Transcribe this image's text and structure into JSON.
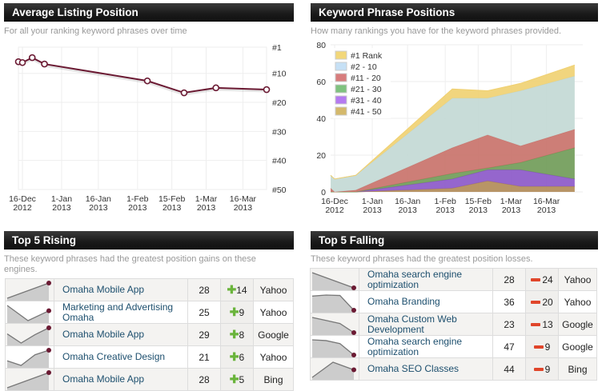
{
  "avg_position": {
    "title": "Average Listing Position",
    "subtitle": "For all your ranking keyword phrases over time",
    "chart_data": {
      "type": "line",
      "x": [
        "2012-12-14",
        "2012-12-16",
        "2012-12-20",
        "2012-12-25",
        "2013-02-05",
        "2013-02-20",
        "2013-03-05",
        "2013-03-28"
      ],
      "y": [
        6,
        6.3,
        4.6,
        6.8,
        12.6,
        16.7,
        15,
        15.6
      ],
      "y_ticks": [
        "#1",
        "#10",
        "#20",
        "#30",
        "#40",
        "#50"
      ],
      "y_tick_values": [
        1,
        10,
        20,
        30,
        40,
        50
      ],
      "ylim": [
        1,
        50
      ],
      "y_inverted": true,
      "x_ticks": [
        [
          "16-Dec",
          "2012"
        ],
        [
          "1-Jan",
          "2013"
        ],
        [
          "16-Jan",
          "2013"
        ],
        [
          "1-Feb",
          "2013"
        ],
        [
          "15-Feb",
          "2013"
        ],
        [
          "1-Mar",
          "2013"
        ],
        [
          "16-Mar",
          "2013"
        ]
      ],
      "x_tick_dates": [
        "2012-12-16",
        "2013-01-01",
        "2013-01-16",
        "2013-02-01",
        "2013-02-15",
        "2013-03-01",
        "2013-03-16"
      ],
      "grid": true,
      "line_color": "#6b1a33"
    }
  },
  "keyword_positions": {
    "title": "Keyword Phrase Positions",
    "subtitle": "How many rankings you have for the keyword phrases provided.",
    "chart_data": {
      "type": "area",
      "stacked": true,
      "x": [
        "2012-12-14",
        "2012-12-16",
        "2012-12-25",
        "2013-02-04",
        "2013-02-19",
        "2013-03-05",
        "2013-03-28"
      ],
      "series": [
        {
          "name": "#41 - 50",
          "values": [
            0,
            0,
            0,
            2,
            6,
            3,
            3
          ],
          "color": "#b08a55",
          "legend_color": "#d4b96c"
        },
        {
          "name": "#31 - 40",
          "values": [
            0,
            0,
            0,
            5,
            6,
            9,
            4
          ],
          "color": "#8a55c8",
          "legend_color": "#b57af0"
        },
        {
          "name": "#21 - 30",
          "values": [
            0,
            0,
            0,
            3,
            1,
            4,
            17
          ],
          "color": "#6e9a55",
          "legend_color": "#7fc27f"
        },
        {
          "name": "#11 - 20",
          "values": [
            2,
            0,
            1,
            14,
            18,
            9,
            10
          ],
          "color": "#c87068",
          "legend_color": "#d77c7c"
        },
        {
          "name": "#2 - 10",
          "values": [
            7,
            7,
            8,
            27,
            20,
            30,
            29
          ],
          "color": "#c2d8d4",
          "legend_color": "#c6e0f5"
        },
        {
          "name": "#1 Rank",
          "values": [
            0,
            0,
            0,
            5,
            4,
            4,
            6
          ],
          "color": "#f0d070",
          "legend_color": "#f2d77a"
        }
      ],
      "ylim": [
        0,
        80
      ],
      "y_ticks": [
        0,
        20,
        40,
        60,
        80
      ],
      "x_ticks": [
        [
          "16-Dec",
          "2012"
        ],
        [
          "1-Jan",
          "2013"
        ],
        [
          "16-Jan",
          "2013"
        ],
        [
          "1-Feb",
          "2013"
        ],
        [
          "15-Feb",
          "2013"
        ],
        [
          "1-Mar",
          "2013"
        ],
        [
          "16-Mar",
          "2013"
        ]
      ],
      "x_tick_dates": [
        "2012-12-16",
        "2013-01-01",
        "2013-01-16",
        "2013-02-01",
        "2013-02-15",
        "2013-03-01",
        "2013-03-16"
      ],
      "legend_placement": "top-left",
      "grid": true
    }
  },
  "rising": {
    "title": "Top 5 Rising",
    "subtitle": "These keyword phrases had the greatest position gains on these engines.",
    "rows": [
      {
        "phrase": "Omaha Mobile App",
        "rank": "28",
        "change": "14",
        "engine": "Yahoo",
        "trend": [
          0,
          1
        ]
      },
      {
        "phrase": "Marketing and Advertising Omaha",
        "rank": "25",
        "change": "9",
        "engine": "Yahoo",
        "trend": [
          1,
          0,
          0.65
        ]
      },
      {
        "phrase": "Omaha Mobile App",
        "rank": "29",
        "change": "8",
        "engine": "Google",
        "trend": [
          0.6,
          0,
          0.55,
          1
        ]
      },
      {
        "phrase": "Omaha Creative Design",
        "rank": "21",
        "change": "6",
        "engine": "Yahoo",
        "trend": [
          0.3,
          0,
          0.7,
          1
        ]
      },
      {
        "phrase": "Omaha Mobile App",
        "rank": "28",
        "change": "5",
        "engine": "Bing",
        "trend": [
          0,
          1
        ]
      }
    ]
  },
  "falling": {
    "title": "Top 5 Falling",
    "subtitle": "These keyword phrases had the greatest position losses.",
    "rows": [
      {
        "phrase": "Omaha search engine optimization",
        "rank": "28",
        "change": "24",
        "engine": "Yahoo",
        "trend": [
          1,
          0
        ]
      },
      {
        "phrase": "Omaha Branding",
        "rank": "36",
        "change": "20",
        "engine": "Yahoo",
        "trend": [
          0.93,
          1,
          0.97,
          0
        ]
      },
      {
        "phrase": "Omaha Custom Web Development",
        "rank": "23",
        "change": "13",
        "engine": "Google",
        "trend": [
          1,
          0.8,
          0.6,
          0
        ]
      },
      {
        "phrase": "Omaha search engine optimization",
        "rank": "47",
        "change": "9",
        "engine": "Google",
        "trend": [
          1,
          0.95,
          0.75,
          0
        ]
      },
      {
        "phrase": "Omaha SEO Classes",
        "rank": "44",
        "change": "9",
        "engine": "Bing",
        "trend": [
          0,
          1,
          0.5
        ]
      }
    ]
  }
}
